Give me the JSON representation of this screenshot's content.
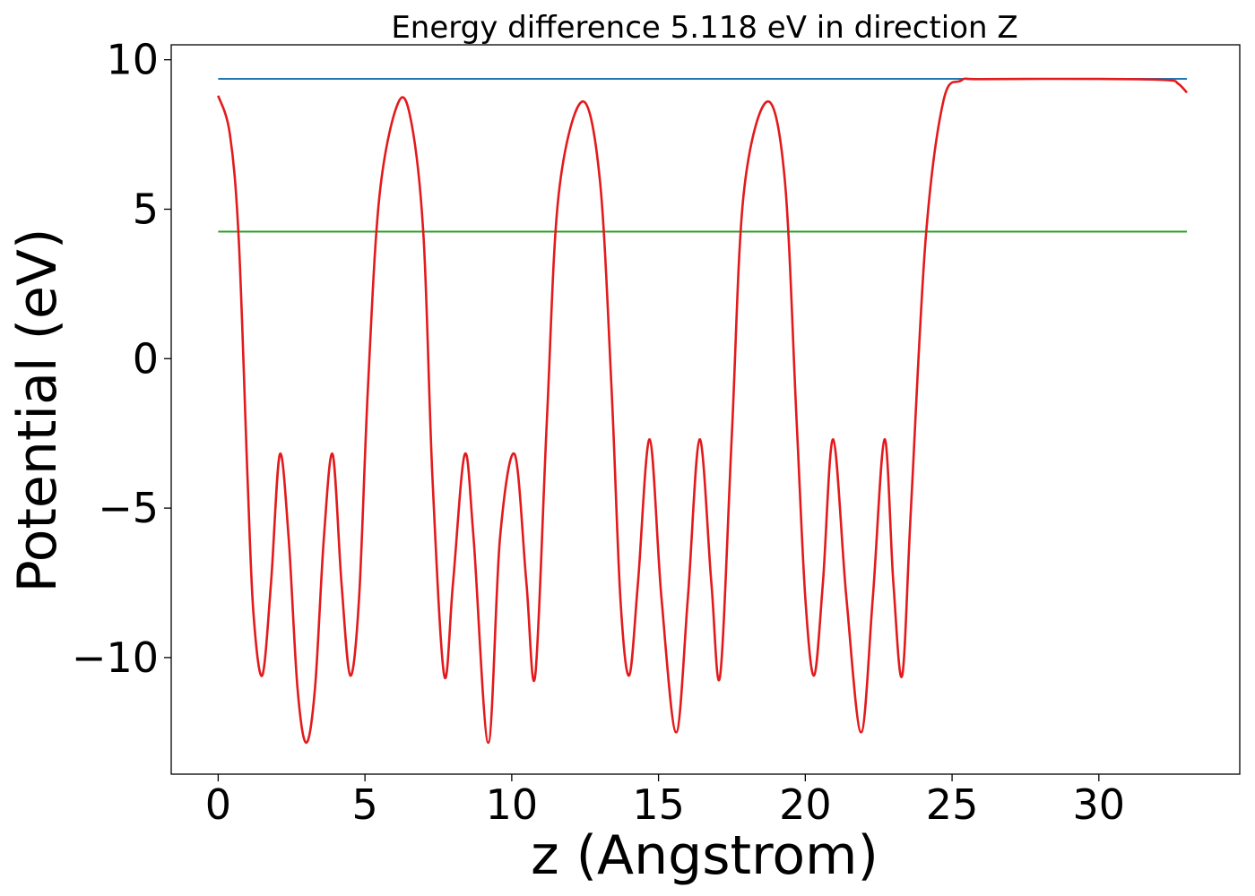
{
  "chart_data": {
    "type": "line",
    "title": "Energy difference 5.118 eV in direction Z",
    "xlabel": "z (Angstrom)",
    "ylabel": "Potential (eV)",
    "xlim": [
      -1.6,
      34.8
    ],
    "ylim": [
      -13.9,
      10.5
    ],
    "grid": false,
    "x_ticks": [
      0,
      5,
      10,
      15,
      20,
      25,
      30
    ],
    "x_tick_labels": [
      "0",
      "5",
      "10",
      "15",
      "20",
      "25",
      "30"
    ],
    "y_ticks": [
      10,
      5,
      0,
      -5,
      -10
    ],
    "y_tick_labels": [
      "10",
      "5",
      "0",
      "−5",
      "−10"
    ],
    "series": [
      {
        "color": "#1f77b4",
        "x": [
          0,
          33
        ],
        "y": [
          9.36,
          9.36
        ]
      },
      {
        "color": "#2ca02c",
        "x": [
          0,
          33
        ],
        "y": [
          4.25,
          4.25
        ]
      },
      {
        "color": "#e31a1c",
        "x": [
          0,
          0.4,
          0.7,
          1.0,
          1.2,
          1.5,
          1.8,
          2.1,
          2.4,
          2.7,
          3.0,
          3.3,
          3.6,
          3.9,
          4.2,
          4.5,
          4.8,
          5.1,
          5.5,
          6.15,
          6.6,
          7.0,
          7.3,
          7.7,
          8.0,
          8.4,
          8.7,
          9.2,
          9.6,
          10.1,
          10.5,
          10.8,
          11.2,
          11.6,
          12.4,
          13.0,
          13.4,
          13.7,
          14.0,
          14.3,
          14.7,
          15.1,
          15.6,
          16.0,
          16.4,
          16.8,
          17.1,
          17.5,
          17.9,
          18.7,
          19.3,
          19.7,
          20.0,
          20.3,
          20.6,
          20.95,
          21.4,
          21.9,
          22.3,
          22.7,
          23.0,
          23.3,
          23.6,
          24.1,
          24.7,
          25.3,
          26.0,
          30.0,
          32.3,
          32.7,
          33.0
        ],
        "y": [
          8.8,
          7.5,
          4.0,
          -4.0,
          -8.5,
          -10.6,
          -7.5,
          -3.2,
          -6.0,
          -11.0,
          -12.85,
          -11.0,
          -6.0,
          -3.2,
          -7.5,
          -10.6,
          -8.0,
          -1.0,
          5.5,
          8.6,
          7.8,
          4.0,
          -4.0,
          -10.6,
          -7.5,
          -3.2,
          -6.0,
          -12.85,
          -6.0,
          -3.2,
          -7.5,
          -10.6,
          -2.0,
          5.5,
          8.6,
          6.0,
          -1.0,
          -8.0,
          -10.6,
          -7.5,
          -2.7,
          -8.0,
          -12.5,
          -8.0,
          -2.7,
          -7.5,
          -10.6,
          -2.5,
          5.5,
          8.6,
          6.0,
          -2.0,
          -8.0,
          -10.6,
          -7.5,
          -2.7,
          -8.0,
          -12.5,
          -8.0,
          -2.7,
          -7.5,
          -10.6,
          -5.0,
          4.0,
          8.6,
          9.3,
          9.35,
          9.36,
          9.32,
          9.2,
          8.9
        ]
      }
    ]
  }
}
